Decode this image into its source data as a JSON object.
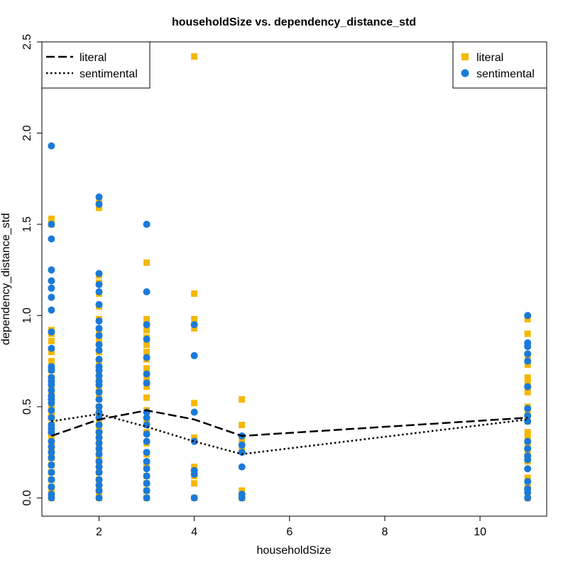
{
  "chart_data": {
    "type": "scatter",
    "title": "householdSize vs. dependency_distance_std",
    "xlabel": "householdSize",
    "ylabel": "dependency_distance_std",
    "xlim": [
      0.8,
      11.4
    ],
    "ylim": [
      -0.1,
      2.5
    ],
    "xticks": [
      2,
      4,
      6,
      8,
      10
    ],
    "yticks": [
      0.0,
      0.5,
      1.0,
      1.5,
      2.0,
      2.5
    ],
    "xtick_labels": [
      "2",
      "4",
      "6",
      "8",
      "10"
    ],
    "ytick_labels": [
      "0.0",
      "0.5",
      "1.0",
      "1.5",
      "2.0",
      "2.5"
    ],
    "grid": false,
    "colors": {
      "literal": "#F5B800",
      "sentimental": "#1A7AD9"
    },
    "series": [
      {
        "name": "literal",
        "marker": "square",
        "points": [
          [
            1,
            1.53
          ],
          [
            1,
            1.5
          ],
          [
            1,
            0.92
          ],
          [
            1,
            0.9
          ],
          [
            1,
            0.86
          ],
          [
            1,
            0.8
          ],
          [
            1,
            0.75
          ],
          [
            1,
            0.7
          ],
          [
            1,
            0.66
          ],
          [
            1,
            0.62
          ],
          [
            1,
            0.58
          ],
          [
            1,
            0.54
          ],
          [
            1,
            0.5
          ],
          [
            1,
            0.46
          ],
          [
            1,
            0.44
          ],
          [
            1,
            0.4
          ],
          [
            1,
            0.36
          ],
          [
            1,
            0.34
          ],
          [
            1,
            0.3
          ],
          [
            1,
            0.26
          ],
          [
            1,
            0.22
          ],
          [
            1,
            0.18
          ],
          [
            1,
            0.14
          ],
          [
            1,
            0.1
          ],
          [
            1,
            0.06
          ],
          [
            1,
            0.03
          ],
          [
            1,
            0.0
          ],
          [
            2,
            1.62
          ],
          [
            2,
            1.59
          ],
          [
            2,
            1.22
          ],
          [
            2,
            1.18
          ],
          [
            2,
            1.12
          ],
          [
            2,
            1.05
          ],
          [
            2,
            0.98
          ],
          [
            2,
            0.92
          ],
          [
            2,
            0.86
          ],
          [
            2,
            0.8
          ],
          [
            2,
            0.75
          ],
          [
            2,
            0.7
          ],
          [
            2,
            0.65
          ],
          [
            2,
            0.6
          ],
          [
            2,
            0.55
          ],
          [
            2,
            0.5
          ],
          [
            2,
            0.46
          ],
          [
            2,
            0.42
          ],
          [
            2,
            0.38
          ],
          [
            2,
            0.34
          ],
          [
            2,
            0.3
          ],
          [
            2,
            0.26
          ],
          [
            2,
            0.22
          ],
          [
            2,
            0.18
          ],
          [
            2,
            0.14
          ],
          [
            2,
            0.1
          ],
          [
            2,
            0.06
          ],
          [
            2,
            0.02
          ],
          [
            2,
            0.0
          ],
          [
            3,
            1.29
          ],
          [
            3,
            0.98
          ],
          [
            3,
            0.95
          ],
          [
            3,
            0.92
          ],
          [
            3,
            0.88
          ],
          [
            3,
            0.84
          ],
          [
            3,
            0.8
          ],
          [
            3,
            0.76
          ],
          [
            3,
            0.71
          ],
          [
            3,
            0.66
          ],
          [
            3,
            0.61
          ],
          [
            3,
            0.55
          ],
          [
            3,
            0.48
          ],
          [
            3,
            0.42
          ],
          [
            3,
            0.36
          ],
          [
            3,
            0.3
          ],
          [
            3,
            0.24
          ],
          [
            3,
            0.18
          ],
          [
            3,
            0.12
          ],
          [
            3,
            0.08
          ],
          [
            3,
            0.04
          ],
          [
            3,
            0.0
          ],
          [
            4,
            2.42
          ],
          [
            4,
            1.12
          ],
          [
            4,
            0.98
          ],
          [
            4,
            0.93
          ],
          [
            4,
            0.52
          ],
          [
            4,
            0.33
          ],
          [
            4,
            0.17
          ],
          [
            4,
            0.12
          ],
          [
            4,
            0.08
          ],
          [
            4,
            0.0
          ],
          [
            5,
            0.54
          ],
          [
            5,
            0.4
          ],
          [
            5,
            0.32
          ],
          [
            5,
            0.26
          ],
          [
            5,
            0.04
          ],
          [
            5,
            0.0
          ],
          [
            11,
            0.98
          ],
          [
            11,
            0.9
          ],
          [
            11,
            0.78
          ],
          [
            11,
            0.73
          ],
          [
            11,
            0.66
          ],
          [
            11,
            0.63
          ],
          [
            11,
            0.58
          ],
          [
            11,
            0.5
          ],
          [
            11,
            0.46
          ],
          [
            11,
            0.42
          ],
          [
            11,
            0.36
          ],
          [
            11,
            0.33
          ],
          [
            11,
            0.3
          ],
          [
            11,
            0.25
          ],
          [
            11,
            0.2
          ],
          [
            11,
            0.11
          ],
          [
            11,
            0.06
          ],
          [
            11,
            0.0
          ]
        ],
        "trend": [
          [
            1,
            0.34
          ],
          [
            2,
            0.43
          ],
          [
            3,
            0.48
          ],
          [
            4,
            0.43
          ],
          [
            5,
            0.34
          ],
          [
            11,
            0.44
          ]
        ]
      },
      {
        "name": "sentimental",
        "marker": "circle",
        "points": [
          [
            1,
            1.93
          ],
          [
            1,
            1.5
          ],
          [
            1,
            1.42
          ],
          [
            1,
            1.25
          ],
          [
            1,
            1.19
          ],
          [
            1,
            1.15
          ],
          [
            1,
            1.1
          ],
          [
            1,
            1.03
          ],
          [
            1,
            0.91
          ],
          [
            1,
            0.82
          ],
          [
            1,
            0.72
          ],
          [
            1,
            0.7
          ],
          [
            1,
            0.66
          ],
          [
            1,
            0.64
          ],
          [
            1,
            0.62
          ],
          [
            1,
            0.59
          ],
          [
            1,
            0.56
          ],
          [
            1,
            0.54
          ],
          [
            1,
            0.52
          ],
          [
            1,
            0.48
          ],
          [
            1,
            0.44
          ],
          [
            1,
            0.4
          ],
          [
            1,
            0.38
          ],
          [
            1,
            0.36
          ],
          [
            1,
            0.31
          ],
          [
            1,
            0.28
          ],
          [
            1,
            0.25
          ],
          [
            1,
            0.22
          ],
          [
            1,
            0.18
          ],
          [
            1,
            0.14
          ],
          [
            1,
            0.1
          ],
          [
            1,
            0.06
          ],
          [
            1,
            0.02
          ],
          [
            1,
            0.0
          ],
          [
            2,
            1.65
          ],
          [
            2,
            1.61
          ],
          [
            2,
            1.23
          ],
          [
            2,
            1.17
          ],
          [
            2,
            1.13
          ],
          [
            2,
            1.06
          ],
          [
            2,
            0.97
          ],
          [
            2,
            0.93
          ],
          [
            2,
            0.89
          ],
          [
            2,
            0.84
          ],
          [
            2,
            0.81
          ],
          [
            2,
            0.76
          ],
          [
            2,
            0.72
          ],
          [
            2,
            0.7
          ],
          [
            2,
            0.67
          ],
          [
            2,
            0.64
          ],
          [
            2,
            0.62
          ],
          [
            2,
            0.58
          ],
          [
            2,
            0.54
          ],
          [
            2,
            0.5
          ],
          [
            2,
            0.47
          ],
          [
            2,
            0.44
          ],
          [
            2,
            0.4
          ],
          [
            2,
            0.36
          ],
          [
            2,
            0.33
          ],
          [
            2,
            0.3
          ],
          [
            2,
            0.27
          ],
          [
            2,
            0.24
          ],
          [
            2,
            0.2
          ],
          [
            2,
            0.17
          ],
          [
            2,
            0.14
          ],
          [
            2,
            0.1
          ],
          [
            2,
            0.07
          ],
          [
            2,
            0.04
          ],
          [
            2,
            0.0
          ],
          [
            3,
            1.5
          ],
          [
            3,
            1.13
          ],
          [
            3,
            0.95
          ],
          [
            3,
            0.87
          ],
          [
            3,
            0.77
          ],
          [
            3,
            0.68
          ],
          [
            3,
            0.63
          ],
          [
            3,
            0.47
          ],
          [
            3,
            0.44
          ],
          [
            3,
            0.4
          ],
          [
            3,
            0.35
          ],
          [
            3,
            0.31
          ],
          [
            3,
            0.25
          ],
          [
            3,
            0.2
          ],
          [
            3,
            0.16
          ],
          [
            3,
            0.12
          ],
          [
            3,
            0.08
          ],
          [
            3,
            0.04
          ],
          [
            3,
            0.0
          ],
          [
            4,
            0.95
          ],
          [
            4,
            0.78
          ],
          [
            4,
            0.47
          ],
          [
            4,
            0.31
          ],
          [
            4,
            0.15
          ],
          [
            4,
            0.13
          ],
          [
            4,
            0.0
          ],
          [
            5,
            0.34
          ],
          [
            5,
            0.29
          ],
          [
            5,
            0.25
          ],
          [
            5,
            0.17
          ],
          [
            5,
            0.02
          ],
          [
            5,
            0.0
          ],
          [
            11,
            1.0
          ],
          [
            11,
            0.85
          ],
          [
            11,
            0.83
          ],
          [
            11,
            0.79
          ],
          [
            11,
            0.75
          ],
          [
            11,
            0.61
          ],
          [
            11,
            0.49
          ],
          [
            11,
            0.45
          ],
          [
            11,
            0.42
          ],
          [
            11,
            0.31
          ],
          [
            11,
            0.27
          ],
          [
            11,
            0.23
          ],
          [
            11,
            0.21
          ],
          [
            11,
            0.16
          ],
          [
            11,
            0.09
          ],
          [
            11,
            0.05
          ],
          [
            11,
            0.03
          ],
          [
            11,
            0.0
          ]
        ],
        "trend": [
          [
            1,
            0.42
          ],
          [
            2,
            0.46
          ],
          [
            3,
            0.39
          ],
          [
            4,
            0.31
          ],
          [
            5,
            0.24
          ],
          [
            11,
            0.43
          ]
        ]
      }
    ],
    "legend_lines": {
      "placement": "top-left",
      "entries": [
        {
          "label": "literal",
          "style": "dashed"
        },
        {
          "label": "sentimental",
          "style": "dotted"
        }
      ]
    },
    "legend_points": {
      "placement": "top-right",
      "entries": [
        {
          "label": "literal",
          "marker": "square"
        },
        {
          "label": "sentimental",
          "marker": "circle"
        }
      ]
    }
  }
}
